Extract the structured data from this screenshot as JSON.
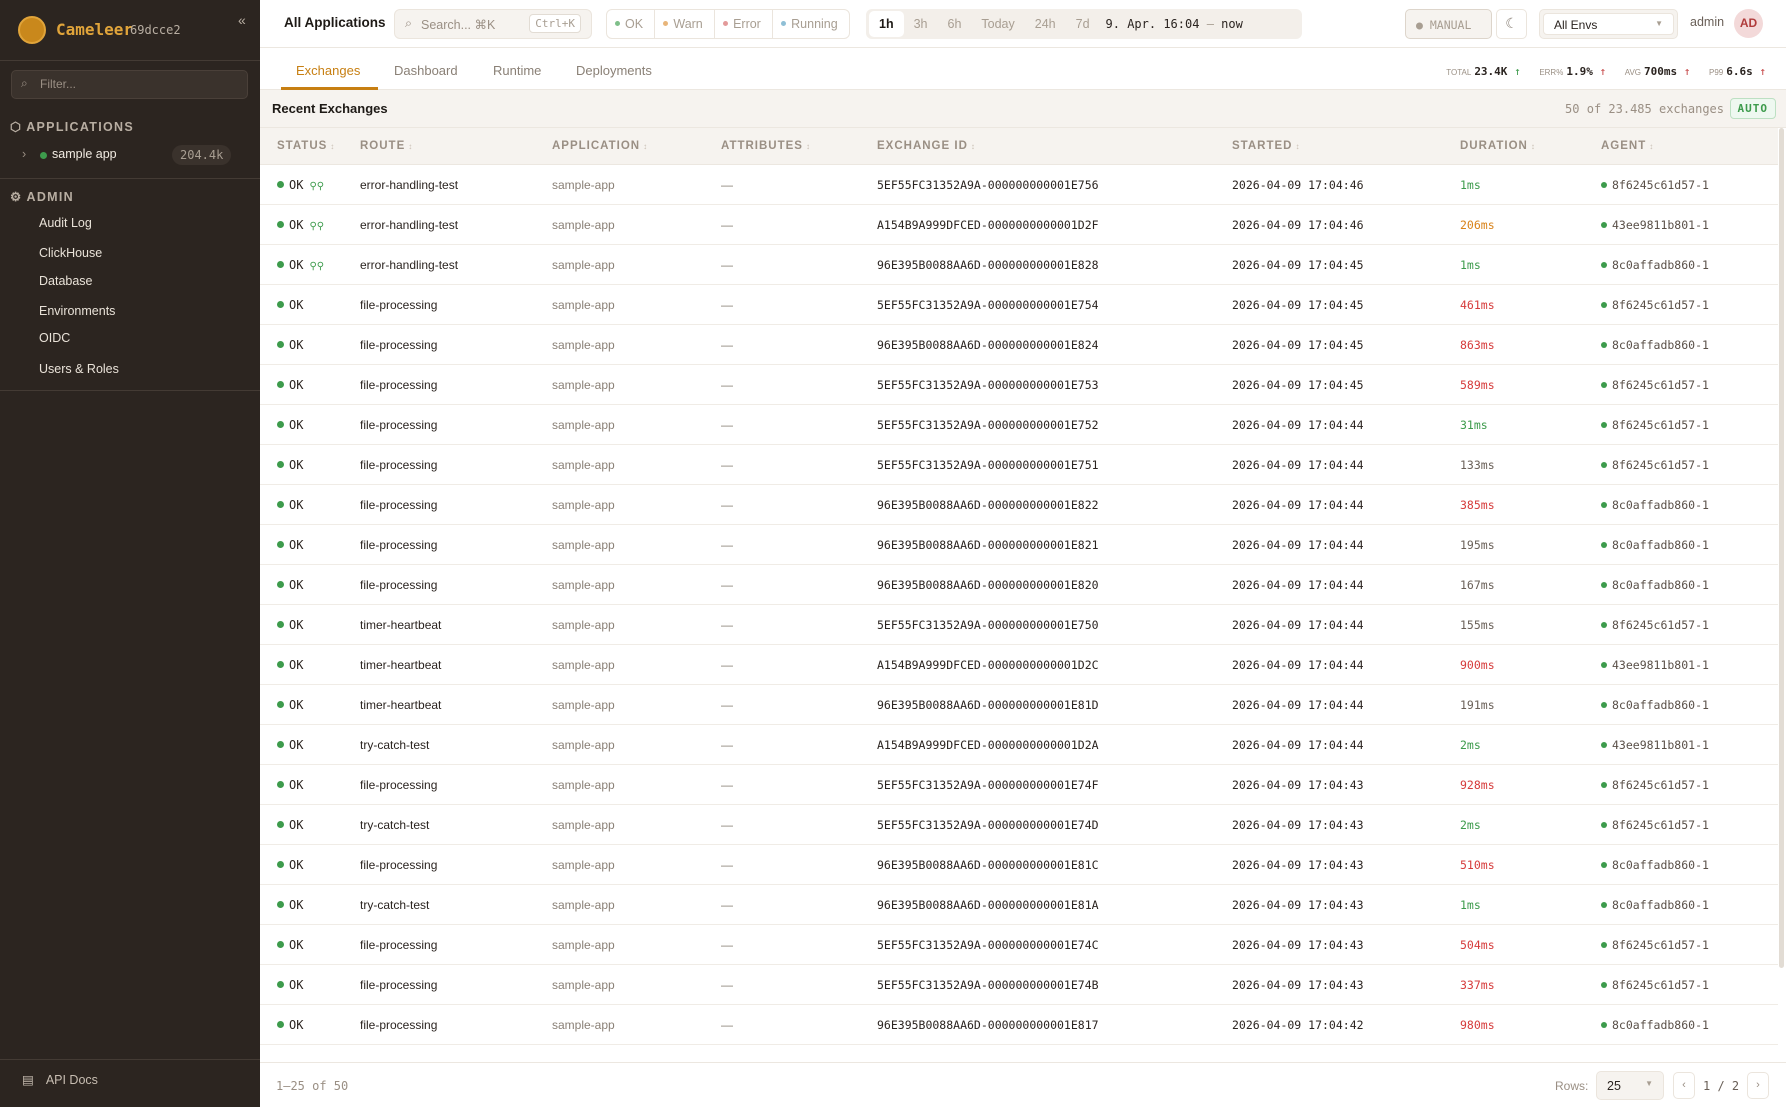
{
  "sidebar": {
    "brand": "Cameleer",
    "version": "69dcce2",
    "filter_placeholder": "Filter...",
    "applications_heading": "APPLICATIONS",
    "apps": [
      {
        "name": "sample app",
        "count": "204.4k",
        "status_color": "#3d9b4c"
      }
    ],
    "admin_heading": "ADMIN",
    "admin_items": [
      "Audit Log",
      "ClickHouse",
      "Database",
      "Environments",
      "OIDC",
      "Users & Roles"
    ],
    "api_docs": "API Docs"
  },
  "topbar": {
    "breadcrumb": "All Applications",
    "search_placeholder": "Search... ⌘K",
    "search_shortcut": "Ctrl+K",
    "status_filters": [
      {
        "label": "OK",
        "color": "#7fbf8a"
      },
      {
        "label": "Warn",
        "color": "#e8b57a"
      },
      {
        "label": "Error",
        "color": "#e39a9a"
      },
      {
        "label": "Running",
        "color": "#8fbfd6"
      }
    ],
    "time_ranges": [
      "1h",
      "3h",
      "6h",
      "Today",
      "24h",
      "7d"
    ],
    "active_time_range": "1h",
    "range_start": "9. Apr. 16:04",
    "range_sep": "—",
    "range_end": "now",
    "refresh_mode": "MANUAL",
    "environment": "All Envs",
    "user": "admin",
    "avatar_initials": "AD"
  },
  "tabs": [
    "Exchanges",
    "Dashboard",
    "Runtime",
    "Deployments"
  ],
  "active_tab": "Exchanges",
  "stats": {
    "total_label": "TOTAL",
    "total": "23.4K",
    "err_label": "ERR%",
    "err": "1.9%",
    "avg_label": "AVG",
    "avg": "700ms",
    "p99_label": "P99",
    "p99": "6.6s",
    "trend": "↑"
  },
  "table": {
    "title": "Recent Exchanges",
    "count_text": "50 of 23.485 exchanges",
    "auto_label": "AUTO",
    "columns": [
      "STATUS",
      "ROUTE",
      "APPLICATION",
      "ATTRIBUTES",
      "EXCHANGE ID",
      "STARTED",
      "DURATION",
      "AGENT"
    ],
    "rows": [
      {
        "status": "OK",
        "replay": true,
        "route": "error-handling-test",
        "app": "sample-app",
        "attrs": "—",
        "id": "5EF55FC31352A9A-000000000001E756",
        "started": "2026-04-09 17:04:46",
        "duration": "1ms",
        "tone": "fast",
        "agent": "8f6245c61d57-1"
      },
      {
        "status": "OK",
        "replay": true,
        "route": "error-handling-test",
        "app": "sample-app",
        "attrs": "—",
        "id": "A154B9A999DFCED-0000000000001D2F",
        "started": "2026-04-09 17:04:46",
        "duration": "206ms",
        "tone": "slow",
        "agent": "43ee9811b801-1"
      },
      {
        "status": "OK",
        "replay": true,
        "route": "error-handling-test",
        "app": "sample-app",
        "attrs": "—",
        "id": "96E395B0088AA6D-000000000001E828",
        "started": "2026-04-09 17:04:45",
        "duration": "1ms",
        "tone": "fast",
        "agent": "8c0affadb860-1"
      },
      {
        "status": "OK",
        "route": "file-processing",
        "app": "sample-app",
        "attrs": "—",
        "id": "5EF55FC31352A9A-000000000001E754",
        "started": "2026-04-09 17:04:45",
        "duration": "461ms",
        "tone": "very-slow",
        "agent": "8f6245c61d57-1"
      },
      {
        "status": "OK",
        "route": "file-processing",
        "app": "sample-app",
        "attrs": "—",
        "id": "96E395B0088AA6D-000000000001E824",
        "started": "2026-04-09 17:04:45",
        "duration": "863ms",
        "tone": "very-slow",
        "agent": "8c0affadb860-1"
      },
      {
        "status": "OK",
        "route": "file-processing",
        "app": "sample-app",
        "attrs": "—",
        "id": "5EF55FC31352A9A-000000000001E753",
        "started": "2026-04-09 17:04:45",
        "duration": "589ms",
        "tone": "very-slow",
        "agent": "8f6245c61d57-1"
      },
      {
        "status": "OK",
        "route": "file-processing",
        "app": "sample-app",
        "attrs": "—",
        "id": "5EF55FC31352A9A-000000000001E752",
        "started": "2026-04-09 17:04:44",
        "duration": "31ms",
        "tone": "fast",
        "agent": "8f6245c61d57-1"
      },
      {
        "status": "OK",
        "route": "file-processing",
        "app": "sample-app",
        "attrs": "—",
        "id": "5EF55FC31352A9A-000000000001E751",
        "started": "2026-04-09 17:04:44",
        "duration": "133ms",
        "tone": "normal",
        "agent": "8f6245c61d57-1"
      },
      {
        "status": "OK",
        "route": "file-processing",
        "app": "sample-app",
        "attrs": "—",
        "id": "96E395B0088AA6D-000000000001E822",
        "started": "2026-04-09 17:04:44",
        "duration": "385ms",
        "tone": "very-slow",
        "agent": "8c0affadb860-1"
      },
      {
        "status": "OK",
        "route": "file-processing",
        "app": "sample-app",
        "attrs": "—",
        "id": "96E395B0088AA6D-000000000001E821",
        "started": "2026-04-09 17:04:44",
        "duration": "195ms",
        "tone": "normal",
        "agent": "8c0affadb860-1"
      },
      {
        "status": "OK",
        "route": "file-processing",
        "app": "sample-app",
        "attrs": "—",
        "id": "96E395B0088AA6D-000000000001E820",
        "started": "2026-04-09 17:04:44",
        "duration": "167ms",
        "tone": "normal",
        "agent": "8c0affadb860-1"
      },
      {
        "status": "OK",
        "route": "timer-heartbeat",
        "app": "sample-app",
        "attrs": "—",
        "id": "5EF55FC31352A9A-000000000001E750",
        "started": "2026-04-09 17:04:44",
        "duration": "155ms",
        "tone": "normal",
        "agent": "8f6245c61d57-1"
      },
      {
        "status": "OK",
        "route": "timer-heartbeat",
        "app": "sample-app",
        "attrs": "—",
        "id": "A154B9A999DFCED-0000000000001D2C",
        "started": "2026-04-09 17:04:44",
        "duration": "900ms",
        "tone": "very-slow",
        "agent": "43ee9811b801-1"
      },
      {
        "status": "OK",
        "route": "timer-heartbeat",
        "app": "sample-app",
        "attrs": "—",
        "id": "96E395B0088AA6D-000000000001E81D",
        "started": "2026-04-09 17:04:44",
        "duration": "191ms",
        "tone": "normal",
        "agent": "8c0affadb860-1"
      },
      {
        "status": "OK",
        "route": "try-catch-test",
        "app": "sample-app",
        "attrs": "—",
        "id": "A154B9A999DFCED-0000000000001D2A",
        "started": "2026-04-09 17:04:44",
        "duration": "2ms",
        "tone": "fast",
        "agent": "43ee9811b801-1"
      },
      {
        "status": "OK",
        "route": "file-processing",
        "app": "sample-app",
        "attrs": "—",
        "id": "5EF55FC31352A9A-000000000001E74F",
        "started": "2026-04-09 17:04:43",
        "duration": "928ms",
        "tone": "very-slow",
        "agent": "8f6245c61d57-1"
      },
      {
        "status": "OK",
        "route": "try-catch-test",
        "app": "sample-app",
        "attrs": "—",
        "id": "5EF55FC31352A9A-000000000001E74D",
        "started": "2026-04-09 17:04:43",
        "duration": "2ms",
        "tone": "fast",
        "agent": "8f6245c61d57-1"
      },
      {
        "status": "OK",
        "route": "file-processing",
        "app": "sample-app",
        "attrs": "—",
        "id": "96E395B0088AA6D-000000000001E81C",
        "started": "2026-04-09 17:04:43",
        "duration": "510ms",
        "tone": "very-slow",
        "agent": "8c0affadb860-1"
      },
      {
        "status": "OK",
        "route": "try-catch-test",
        "app": "sample-app",
        "attrs": "—",
        "id": "96E395B0088AA6D-000000000001E81A",
        "started": "2026-04-09 17:04:43",
        "duration": "1ms",
        "tone": "fast",
        "agent": "8c0affadb860-1"
      },
      {
        "status": "OK",
        "route": "file-processing",
        "app": "sample-app",
        "attrs": "—",
        "id": "5EF55FC31352A9A-000000000001E74C",
        "started": "2026-04-09 17:04:43",
        "duration": "504ms",
        "tone": "very-slow",
        "agent": "8f6245c61d57-1"
      },
      {
        "status": "OK",
        "route": "file-processing",
        "app": "sample-app",
        "attrs": "—",
        "id": "5EF55FC31352A9A-000000000001E74B",
        "started": "2026-04-09 17:04:43",
        "duration": "337ms",
        "tone": "very-slow",
        "agent": "8f6245c61d57-1"
      },
      {
        "status": "OK",
        "route": "file-processing",
        "app": "sample-app",
        "attrs": "—",
        "id": "96E395B0088AA6D-000000000001E817",
        "started": "2026-04-09 17:04:42",
        "duration": "980ms",
        "tone": "very-slow",
        "agent": "8c0affadb860-1"
      }
    ]
  },
  "footer": {
    "range_text": "1–25 of 50",
    "rows_label": "Rows:",
    "rows_value": "25",
    "page_text": "1 / 2"
  }
}
